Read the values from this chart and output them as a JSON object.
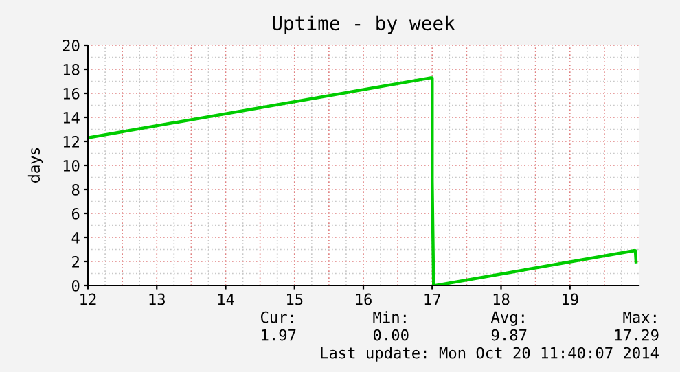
{
  "chart_data": {
    "type": "line",
    "title": "Uptime - by week",
    "ylabel": "days",
    "series": [
      {
        "color": "#00cc00",
        "x": [
          12,
          16.98,
          17.0,
          17.0,
          17.02,
          17.05,
          19.93,
          19.95,
          19.96
        ],
        "values": [
          12.3,
          17.29,
          17.29,
          8.7,
          0,
          0,
          2.9,
          2.9,
          1.97
        ]
      }
    ],
    "xlim": [
      12,
      20
    ],
    "xticks": [
      12,
      13,
      14,
      15,
      16,
      17,
      18,
      19
    ],
    "ylim": [
      0,
      20
    ],
    "yticks": [
      0,
      2,
      4,
      6,
      8,
      10,
      12,
      14,
      16,
      18,
      20
    ],
    "grid": true,
    "legend": false,
    "annotations": [
      "Cur:",
      "1.97",
      "Min:",
      "0.00",
      "Avg:",
      "9.87",
      "Max:",
      "17.29",
      "Last update: Mon Oct 20 11:40:07 2014"
    ]
  }
}
